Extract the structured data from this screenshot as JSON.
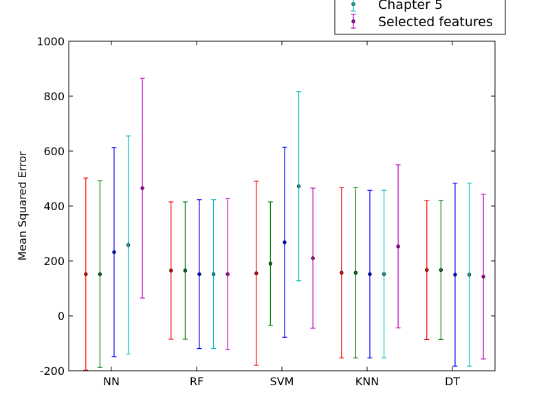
{
  "chart_data": {
    "type": "scatter",
    "title": "",
    "xlabel": "",
    "ylabel": "Mean Squared Error",
    "categories": [
      "NN",
      "RF",
      "SVM",
      "KNN",
      "DT"
    ],
    "ylim": [
      -200,
      1000
    ],
    "yticks": [
      -200,
      0,
      200,
      400,
      600,
      800,
      1000
    ],
    "grid": false,
    "legend_placement": "top-right, above plot (partially clipped)",
    "series": [
      {
        "name": "",
        "color": "#ff0000",
        "values": [
          152,
          165,
          155,
          157,
          167
        ],
        "errors": [
          350,
          250,
          335,
          310,
          253
        ]
      },
      {
        "name": "",
        "color": "#008000",
        "values": [
          152,
          165,
          190,
          157,
          167
        ],
        "errors": [
          340,
          250,
          225,
          310,
          253
        ]
      },
      {
        "name": "",
        "color": "#0000ff",
        "values": [
          232,
          152,
          268,
          152,
          150
        ],
        "errors": [
          381,
          271,
          346,
          305,
          333
        ]
      },
      {
        "name": "Chapter 5",
        "color": "#00bfbf",
        "values": [
          258,
          152,
          472,
          152,
          150
        ],
        "errors": [
          397,
          271,
          344,
          305,
          333
        ]
      },
      {
        "name": "Selected features",
        "color": "#bf00bf",
        "values": [
          465,
          152,
          210,
          253,
          143
        ],
        "errors": [
          400,
          275,
          255,
          297,
          300
        ]
      }
    ]
  }
}
